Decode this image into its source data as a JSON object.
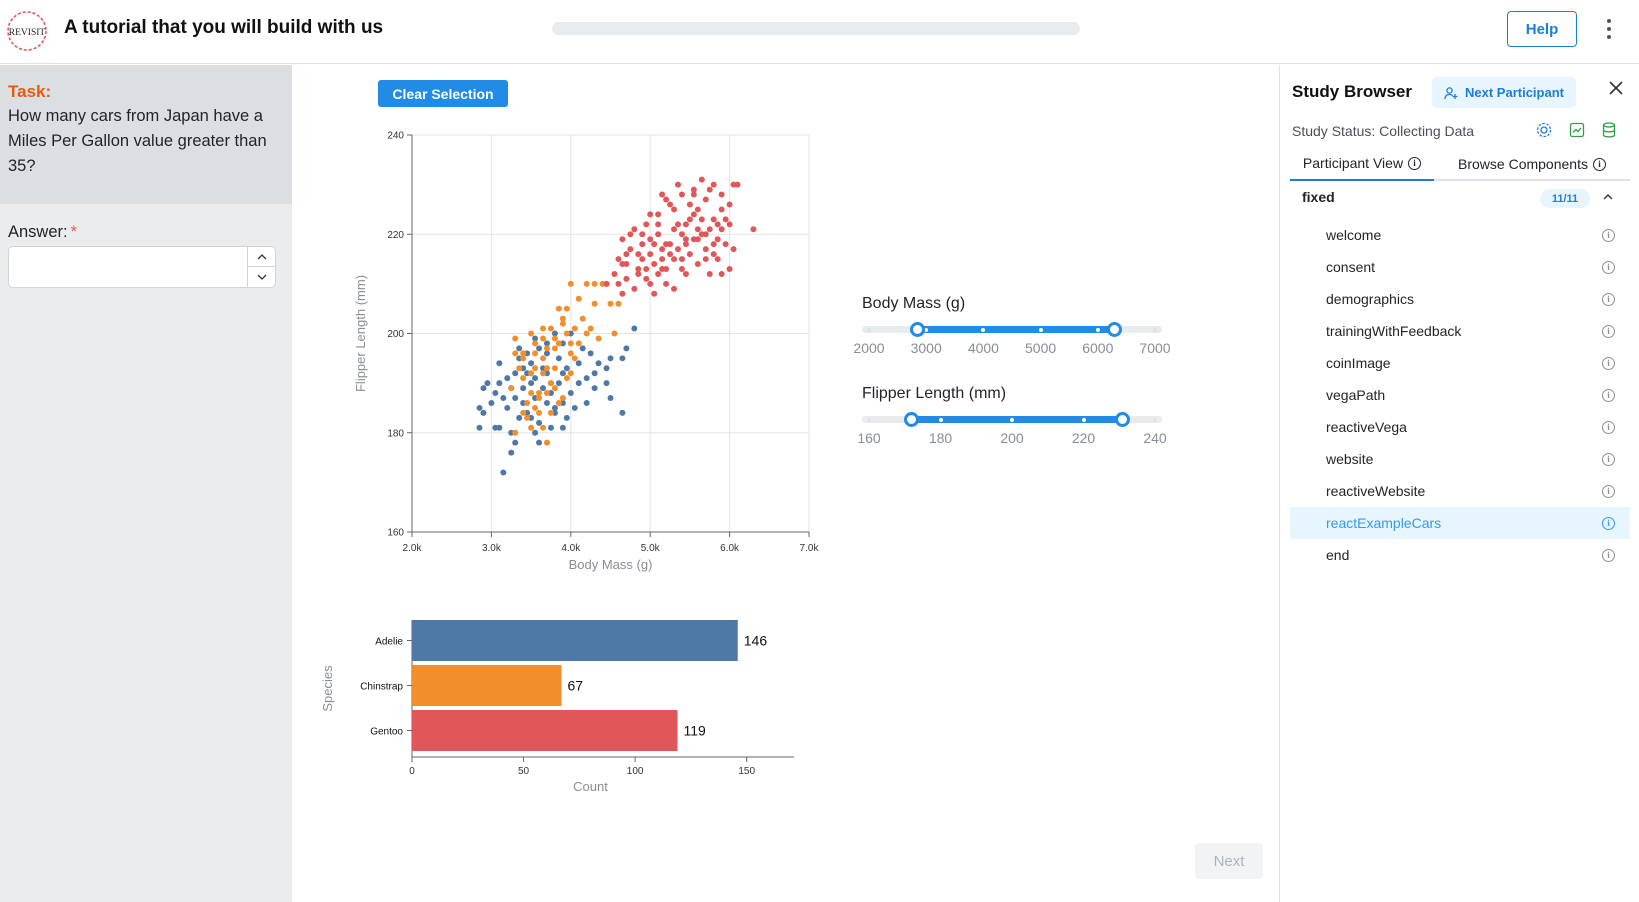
{
  "header": {
    "title": "A tutorial that you will build with us",
    "logo_text": "REVISIT",
    "progress_fraction": 0.0,
    "help_label": "Help"
  },
  "task": {
    "label": "Task:",
    "question": "How many cars from Japan have a Miles Per Gallon value greater than 35?",
    "answer_label": "Answer:",
    "required_mark": "*",
    "answer_value": ""
  },
  "main": {
    "clear_label": "Clear Selection",
    "next_label": "Next",
    "body_mass_slider": {
      "title": "Body Mass (g)",
      "min": 2000,
      "max": 7000,
      "low": 2850,
      "high": 6300,
      "labels": [
        "2000",
        "3000",
        "4000",
        "5000",
        "6000",
        "7000"
      ]
    },
    "flipper_slider": {
      "title": "Flipper Length (mm)",
      "min": 160,
      "max": 240,
      "low": 172,
      "high": 231,
      "labels": [
        "160",
        "180",
        "200",
        "220",
        "240"
      ]
    }
  },
  "chart_data": [
    {
      "type": "scatter",
      "title": "",
      "xlabel": "Body Mass (g)",
      "ylabel": "Flipper Length (mm)",
      "xlim": [
        2000,
        7000
      ],
      "ylim": [
        160,
        240
      ],
      "x_ticks": [
        "2.0k",
        "3.0k",
        "4.0k",
        "5.0k",
        "6.0k",
        "7.0k"
      ],
      "y_ticks": [
        "160",
        "180",
        "200",
        "220",
        "240"
      ],
      "grid": true,
      "series": [
        {
          "color": "#4e79a7",
          "points": [
            [
              3150,
              172
            ],
            [
              3300,
              178
            ],
            [
              3250,
              180
            ],
            [
              3100,
              181
            ],
            [
              2900,
              184
            ],
            [
              2850,
              185
            ],
            [
              3000,
              186
            ],
            [
              3050,
              188
            ],
            [
              3100,
              190
            ],
            [
              2950,
              190
            ],
            [
              3200,
              191
            ],
            [
              3300,
              192
            ],
            [
              3400,
              193
            ],
            [
              3500,
              194
            ],
            [
              3350,
              195
            ],
            [
              3450,
              196
            ],
            [
              3600,
              197
            ],
            [
              3700,
              198
            ],
            [
              3550,
              199
            ],
            [
              3800,
              200
            ],
            [
              3400,
              186
            ],
            [
              3550,
              187
            ],
            [
              3650,
              189
            ],
            [
              3750,
              190
            ],
            [
              3450,
              184
            ],
            [
              3500,
              183
            ],
            [
              3600,
              182
            ],
            [
              3800,
              185
            ],
            [
              3900,
              186
            ],
            [
              4000,
              188
            ],
            [
              4100,
              190
            ],
            [
              4200,
              191
            ],
            [
              4300,
              192
            ],
            [
              4450,
              193
            ],
            [
              4500,
              195
            ],
            [
              4650,
              195
            ],
            [
              4700,
              197
            ],
            [
              4450,
              190
            ],
            [
              4300,
              189
            ],
            [
              3950,
              193
            ],
            [
              3850,
              195
            ],
            [
              3700,
              192
            ],
            [
              3200,
              185
            ],
            [
              3300,
              187
            ],
            [
              3400,
              189
            ],
            [
              3700,
              186
            ],
            [
              3800,
              184
            ],
            [
              3550,
              180
            ],
            [
              3250,
              176
            ],
            [
              3050,
              181
            ],
            [
              4050,
              185
            ],
            [
              3900,
              181
            ],
            [
              3600,
              178
            ],
            [
              3750,
              181
            ],
            [
              3350,
              183
            ],
            [
              3150,
              187
            ],
            [
              4250,
              196
            ],
            [
              4150,
              197
            ],
            [
              4000,
              200
            ],
            [
              3900,
              198
            ],
            [
              4800,
              201
            ],
            [
              4350,
              194
            ],
            [
              4650,
              184
            ],
            [
              3100,
              194
            ],
            [
              2900,
              189
            ],
            [
              2850,
              181
            ],
            [
              3500,
              190
            ],
            [
              4100,
              194
            ],
            [
              3650,
              193
            ],
            [
              3450,
              192
            ],
            [
              3700,
              196
            ],
            [
              3350,
              197
            ],
            [
              3900,
              192
            ],
            [
              4500,
              187
            ],
            [
              4200,
              186
            ],
            [
              3950,
              183
            ],
            [
              3750,
              188
            ],
            [
              3850,
              190
            ],
            [
              3550,
              191
            ],
            [
              3250,
              189
            ]
          ]
        },
        {
          "color": "#f28e2b",
          "points": [
            [
              3700,
              178
            ],
            [
              3500,
              181
            ],
            [
              3600,
              187
            ],
            [
              3750,
              190
            ],
            [
              3650,
              192
            ],
            [
              3800,
              193
            ],
            [
              3400,
              195
            ],
            [
              3550,
              196
            ],
            [
              3700,
              197
            ],
            [
              3850,
              198
            ],
            [
              3300,
              199
            ],
            [
              3500,
              200
            ],
            [
              3650,
              201
            ],
            [
              3900,
              202
            ],
            [
              3450,
              186
            ],
            [
              3600,
              188
            ],
            [
              3800,
              189
            ],
            [
              3250,
              189
            ],
            [
              3550,
              193
            ],
            [
              4050,
              195
            ],
            [
              4000,
              198
            ],
            [
              3800,
              199
            ],
            [
              3900,
              203
            ],
            [
              4100,
              207
            ],
            [
              4000,
              210
            ],
            [
              4200,
              210
            ],
            [
              4300,
              210
            ],
            [
              4400,
              210
            ],
            [
              3950,
              205
            ],
            [
              4150,
              203
            ],
            [
              4250,
              201
            ],
            [
              4350,
              199
            ],
            [
              4550,
              200
            ],
            [
              4600,
              206
            ],
            [
              4500,
              206
            ],
            [
              4000,
              196
            ],
            [
              3700,
              188
            ],
            [
              3400,
              184
            ],
            [
              3300,
              180
            ],
            [
              3650,
              181
            ],
            [
              3750,
              184
            ],
            [
              3500,
              188
            ],
            [
              3900,
              187
            ],
            [
              3350,
              193
            ],
            [
              3800,
              197
            ],
            [
              3650,
              195
            ],
            [
              3550,
              185
            ],
            [
              3950,
              200
            ],
            [
              4050,
              201
            ],
            [
              4100,
              198
            ],
            [
              3400,
              191
            ],
            [
              3850,
              186
            ],
            [
              3450,
              183
            ],
            [
              3600,
              184
            ],
            [
              4200,
              200
            ],
            [
              3950,
              191
            ],
            [
              3750,
              201
            ],
            [
              3850,
              205
            ],
            [
              4450,
              210
            ],
            [
              4300,
              206
            ],
            [
              4000,
              192
            ],
            [
              3700,
              193
            ],
            [
              3550,
              198
            ],
            [
              3400,
              196
            ],
            [
              3650,
              199
            ],
            [
              3300,
              196
            ],
            [
              3500,
              192
            ]
          ]
        },
        {
          "color": "#e15759",
          "points": [
            [
              4800,
              209
            ],
            [
              5000,
              210
            ],
            [
              5100,
              212
            ],
            [
              5200,
              213
            ],
            [
              5300,
              215
            ],
            [
              5400,
              215
            ],
            [
              5500,
              216
            ],
            [
              5700,
              217
            ],
            [
              5800,
              218
            ],
            [
              5600,
              219
            ],
            [
              5700,
              220
            ],
            [
              5900,
              221
            ],
            [
              6000,
              222
            ],
            [
              6050,
              230
            ],
            [
              5800,
              230
            ],
            [
              5650,
              231
            ],
            [
              5550,
              229
            ],
            [
              5400,
              228
            ],
            [
              5200,
              227
            ],
            [
              5100,
              224
            ],
            [
              4900,
              220
            ],
            [
              4750,
              217
            ],
            [
              4650,
              214
            ],
            [
              4600,
              210
            ],
            [
              4700,
              211
            ],
            [
              4850,
              212
            ],
            [
              4950,
              213
            ],
            [
              5050,
              214
            ],
            [
              5150,
              215
            ],
            [
              5250,
              216
            ],
            [
              5350,
              217
            ],
            [
              5450,
              218
            ],
            [
              5550,
              219
            ],
            [
              5650,
              220
            ],
            [
              5750,
              221
            ],
            [
              5850,
              222
            ],
            [
              5950,
              223
            ],
            [
              6300,
              221
            ],
            [
              5600,
              225
            ],
            [
              5500,
              223
            ],
            [
              5300,
              221
            ],
            [
              5100,
              220
            ],
            [
              4900,
              218
            ],
            [
              4700,
              216
            ],
            [
              5000,
              216
            ],
            [
              5200,
              218
            ],
            [
              5400,
              220
            ],
            [
              5600,
              221
            ],
            [
              5800,
              223
            ],
            [
              5900,
              225
            ],
            [
              5700,
              227
            ],
            [
              5500,
              226
            ],
            [
              5300,
              225
            ],
            [
              5100,
              222
            ],
            [
              4950,
              222
            ],
            [
              4800,
              221
            ],
            [
              4650,
              219
            ],
            [
              5000,
              219
            ],
            [
              5250,
              218
            ],
            [
              5450,
              219
            ],
            [
              5150,
              217
            ],
            [
              4900,
              215
            ],
            [
              4700,
              214
            ],
            [
              4550,
              212
            ],
            [
              4450,
              210
            ],
            [
              4600,
              215
            ],
            [
              4850,
              216
            ],
            [
              5050,
              218
            ],
            [
              5350,
              222
            ],
            [
              5650,
              223
            ],
            [
              5850,
              215
            ],
            [
              6000,
              213
            ],
            [
              5400,
              213
            ],
            [
              5200,
              210
            ],
            [
              5600,
              214
            ],
            [
              5750,
              212
            ],
            [
              5950,
              218
            ],
            [
              5800,
              216
            ],
            [
              6100,
              230
            ],
            [
              5900,
              228
            ],
            [
              5450,
              222
            ],
            [
              5550,
              224
            ],
            [
              4750,
              220
            ],
            [
              5000,
              224
            ],
            [
              5250,
              226
            ],
            [
              5150,
              228
            ],
            [
              5350,
              230
            ],
            [
              5750,
              229
            ],
            [
              5550,
              228
            ],
            [
              5850,
              219
            ],
            [
              4850,
              213
            ],
            [
              4650,
              208
            ],
            [
              5050,
              208
            ],
            [
              5300,
              209
            ],
            [
              6000,
              226
            ],
            [
              5700,
              215
            ],
            [
              5450,
              212
            ],
            [
              5150,
              213
            ],
            [
              4950,
              211
            ],
            [
              6050,
              217
            ],
            [
              5900,
              212
            ]
          ]
        }
      ]
    },
    {
      "type": "bar",
      "title": "",
      "xlabel": "Count",
      "ylabel": "Species",
      "categories": [
        "Adelie",
        "Chinstrap",
        "Gentoo"
      ],
      "values": [
        146,
        67,
        119
      ],
      "colors": [
        "#4e79a7",
        "#f28e2b",
        "#e15759"
      ],
      "xlim": [
        0,
        160
      ],
      "x_ticks": [
        "0",
        "50",
        "100",
        "150"
      ]
    }
  ],
  "sidebar": {
    "title": "Study Browser",
    "next_participant_label": "Next Participant",
    "status_text": "Study Status: Collecting Data",
    "tabs": [
      "Participant View",
      "Browse Components"
    ],
    "group": {
      "name": "fixed",
      "badge": "11/11"
    },
    "components": [
      "welcome",
      "consent",
      "demographics",
      "trainingWithFeedback",
      "coinImage",
      "vegaPath",
      "reactiveVega",
      "website",
      "reactiveWebsite",
      "reactExampleCars",
      "end"
    ],
    "active_component": "reactExampleCars",
    "accent_color": "#1c7ed6"
  }
}
